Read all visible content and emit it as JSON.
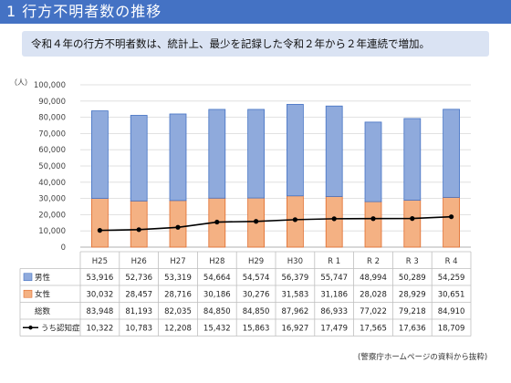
{
  "header": {
    "title": "1 行方不明者数の推移",
    "summary": "令和４年の行方不明者数は、統計上、最少を記録した令和２年から２年連続で増加。"
  },
  "footer": {
    "source": "(警察庁ホームページの資料から抜粋)"
  },
  "chart_data": {
    "type": "bar",
    "stacked": true,
    "unit_label": "（人）",
    "categories": [
      "H25",
      "H26",
      "H27",
      "H28",
      "H29",
      "H30",
      "R 1",
      "R 2",
      "R 3",
      "R 4"
    ],
    "ylim": [
      0,
      100000
    ],
    "yticks": [
      0,
      10000,
      20000,
      30000,
      40000,
      50000,
      60000,
      70000,
      80000,
      90000,
      100000
    ],
    "ytick_labels": [
      "0",
      "10,000",
      "20,000",
      "30,000",
      "40,000",
      "50,000",
      "60,000",
      "70,000",
      "80,000",
      "90,000",
      "100,000"
    ],
    "grid": true,
    "series": [
      {
        "name": "男性",
        "kind": "bar",
        "color": "#8faadc",
        "values": [
          53916,
          52736,
          53319,
          54664,
          54574,
          56379,
          55747,
          48994,
          50289,
          54259
        ],
        "display": [
          "53,916",
          "52,736",
          "53,319",
          "54,664",
          "54,574",
          "56,379",
          "55,747",
          "48,994",
          "50,289",
          "54,259"
        ]
      },
      {
        "name": "女性",
        "kind": "bar",
        "color": "#f4b183",
        "values": [
          30032,
          28457,
          28716,
          30186,
          30276,
          31583,
          31186,
          28028,
          28929,
          30651
        ],
        "display": [
          "30,032",
          "28,457",
          "28,716",
          "30,186",
          "30,276",
          "31,583",
          "31,186",
          "28,028",
          "28,929",
          "30,651"
        ]
      },
      {
        "name": "総数",
        "kind": "total",
        "values": [
          83948,
          81193,
          82035,
          84850,
          84850,
          87962,
          86933,
          77022,
          79218,
          84910
        ],
        "display": [
          "83,948",
          "81,193",
          "82,035",
          "84,850",
          "84,850",
          "87,962",
          "86,933",
          "77,022",
          "79,218",
          "84,910"
        ]
      },
      {
        "name": "うち認知症",
        "kind": "line",
        "color": "#000000",
        "values": [
          10322,
          10783,
          12208,
          15432,
          15863,
          16927,
          17479,
          17565,
          17636,
          18709
        ],
        "display": [
          "10,322",
          "10,783",
          "12,208",
          "15,432",
          "15,863",
          "16,927",
          "17,479",
          "17,565",
          "17,636",
          "18,709"
        ]
      }
    ]
  }
}
